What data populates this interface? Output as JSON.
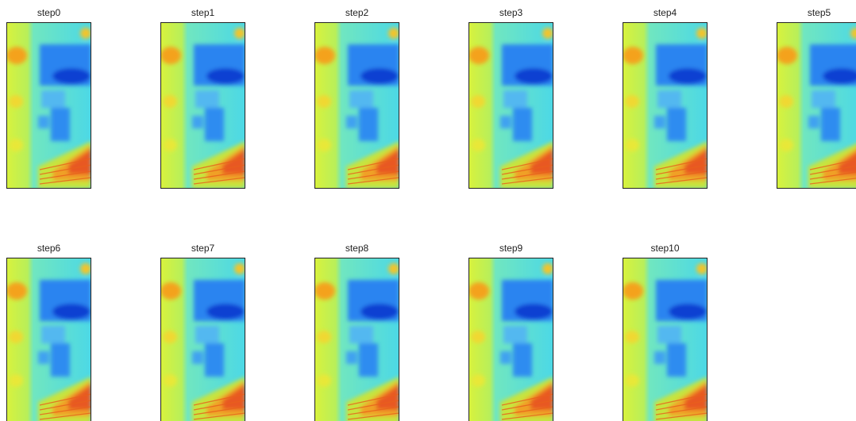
{
  "panels": [
    {
      "title": "step0"
    },
    {
      "title": "step1"
    },
    {
      "title": "step2"
    },
    {
      "title": "step3"
    },
    {
      "title": "step4"
    },
    {
      "title": "step5"
    },
    {
      "title": "step6"
    },
    {
      "title": "step7"
    },
    {
      "title": "step8"
    },
    {
      "title": "step9"
    },
    {
      "title": "step10"
    }
  ]
}
